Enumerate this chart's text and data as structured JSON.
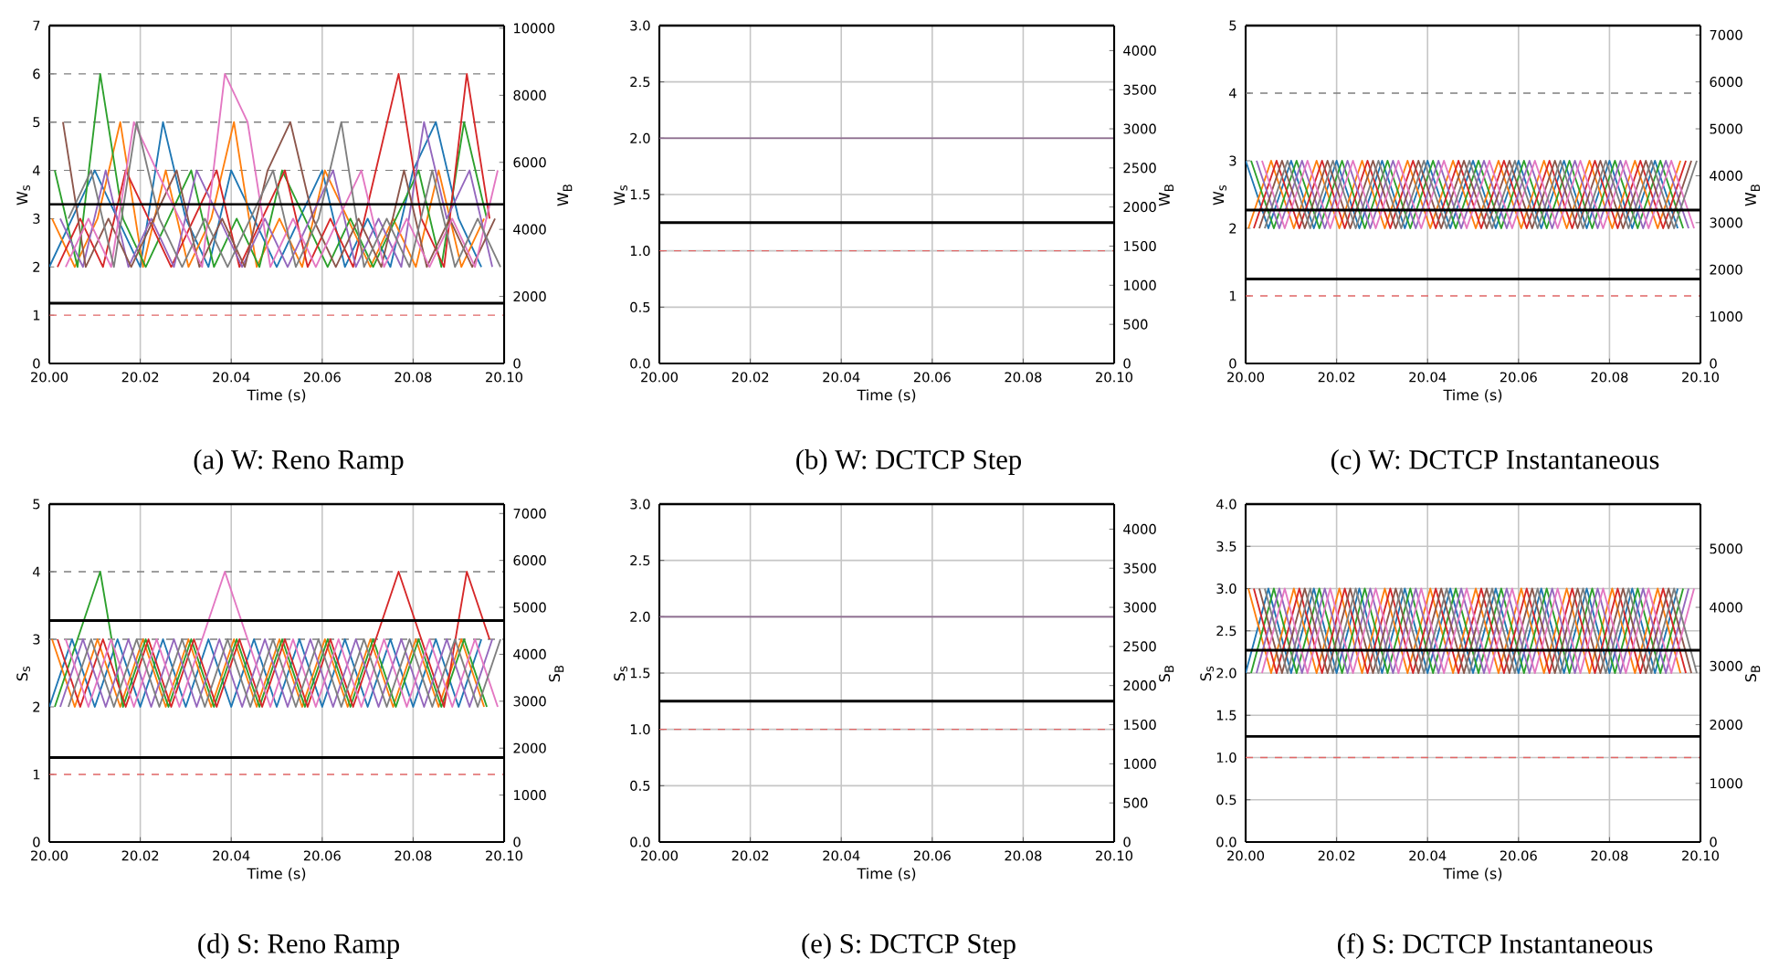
{
  "chart_data": [
    {
      "type": "line",
      "title": "(a) W: Reno Ramp",
      "xlabel": "Time (s)",
      "ylabel": "W$_{s}$",
      "y2label": "W$_{B}$",
      "grid": "x",
      "xlim": [
        20.0,
        20.1
      ],
      "xticks": [
        {
          "value": 20.0,
          "label": "20.00"
        },
        {
          "value": 20.02,
          "label": "20.02"
        },
        {
          "value": 20.04,
          "label": "20.04"
        },
        {
          "value": 20.06,
          "label": "20.06"
        },
        {
          "value": 20.08,
          "label": "20.08"
        },
        {
          "value": 20.1,
          "label": "20.10"
        }
      ],
      "ylim": [
        0,
        7
      ],
      "yticks": [
        0,
        1,
        2,
        3,
        4,
        5,
        6,
        7
      ],
      "y2lim": [
        0,
        10080
      ],
      "y2ticks": [
        0,
        2000,
        4000,
        6000,
        8000,
        10000
      ],
      "series": [
        {
          "color": "#1f77b4",
          "x": [
            20.0,
            20.005,
            20.01,
            20.015,
            20.02,
            20.025,
            20.03,
            20.035,
            20.04,
            20.045,
            20.05,
            20.055,
            20.06,
            20.065,
            20.07,
            20.075,
            20.08,
            20.085,
            20.09,
            20.095
          ],
          "values": [
            2,
            3,
            4,
            3,
            2,
            5,
            3,
            2,
            4,
            3,
            2,
            3,
            4,
            2,
            3,
            2,
            4,
            5,
            3,
            2
          ]
        },
        {
          "color": "#ff7f0e",
          "x": [
            20.0006,
            20.0056,
            20.0106,
            20.0156,
            20.0206,
            20.0256,
            20.0306,
            20.0356,
            20.0406,
            20.0456,
            20.0506,
            20.0556,
            20.0606,
            20.0656,
            20.0706,
            20.0756,
            20.0806,
            20.0856,
            20.0906,
            20.0956
          ],
          "values": [
            3,
            2,
            3,
            5,
            2,
            4,
            2,
            3,
            5,
            2,
            3,
            2,
            4,
            3,
            2,
            3,
            2,
            4,
            2,
            3
          ]
        },
        {
          "color": "#2ca02c",
          "x": [
            20.0012,
            20.0062,
            20.0112,
            20.0162,
            20.0212,
            20.0262,
            20.0312,
            20.0362,
            20.0412,
            20.0462,
            20.0512,
            20.0562,
            20.0612,
            20.0662,
            20.0712,
            20.0762,
            20.0812,
            20.0862,
            20.0912,
            20.0962
          ],
          "values": [
            4,
            2,
            6,
            3,
            2,
            3,
            4,
            2,
            3,
            2,
            4,
            3,
            2,
            3,
            2,
            3,
            4,
            2,
            5,
            3
          ]
        },
        {
          "color": "#d62728",
          "x": [
            20.0018,
            20.0068,
            20.0118,
            20.0168,
            20.0218,
            20.0268,
            20.0318,
            20.0368,
            20.0418,
            20.0468,
            20.0518,
            20.0568,
            20.0618,
            20.0668,
            20.0718,
            20.0768,
            20.0818,
            20.0868,
            20.0918,
            20.0968
          ],
          "values": [
            2,
            3,
            2,
            4,
            3,
            2,
            3,
            4,
            2,
            3,
            4,
            2,
            3,
            2,
            4,
            6,
            3,
            2,
            6,
            3
          ]
        },
        {
          "color": "#9467bd",
          "x": [
            20.0024,
            20.0074,
            20.0124,
            20.0174,
            20.0224,
            20.0274,
            20.0324,
            20.0374,
            20.0424,
            20.0474,
            20.0524,
            20.0574,
            20.0624,
            20.0674,
            20.0724,
            20.0774,
            20.0824,
            20.0874,
            20.0924,
            20.0974
          ],
          "values": [
            3,
            2,
            4,
            2,
            3,
            2,
            4,
            3,
            2,
            3,
            2,
            3,
            4,
            2,
            3,
            2,
            5,
            3,
            4,
            2
          ]
        },
        {
          "color": "#8c564b",
          "x": [
            20.003,
            20.008,
            20.013,
            20.018,
            20.023,
            20.028,
            20.033,
            20.038,
            20.043,
            20.048,
            20.053,
            20.058,
            20.063,
            20.068,
            20.073,
            20.078,
            20.083,
            20.088,
            20.093,
            20.098
          ],
          "values": [
            5,
            2,
            3,
            2,
            3,
            4,
            2,
            3,
            2,
            4,
            5,
            3,
            2,
            3,
            2,
            4,
            2,
            3,
            2,
            3
          ]
        },
        {
          "color": "#e377c2",
          "x": [
            20.0036,
            20.0086,
            20.0136,
            20.0186,
            20.0236,
            20.0286,
            20.0336,
            20.0386,
            20.0436,
            20.0486,
            20.0536,
            20.0586,
            20.0636,
            20.0686,
            20.0736,
            20.0786,
            20.0836,
            20.0886,
            20.0936,
            20.0986
          ],
          "values": [
            2,
            3,
            2,
            5,
            4,
            3,
            2,
            6,
            5,
            2,
            3,
            2,
            3,
            4,
            2,
            3,
            2,
            3,
            2,
            4
          ]
        },
        {
          "color": "#7f7f7f",
          "x": [
            20.0042,
            20.0092,
            20.0142,
            20.0192,
            20.0242,
            20.0292,
            20.0342,
            20.0392,
            20.0442,
            20.0492,
            20.0542,
            20.0592,
            20.0642,
            20.0692,
            20.0742,
            20.0792,
            20.0842,
            20.0892,
            20.0942,
            20.0992
          ],
          "values": [
            3,
            4,
            2,
            5,
            3,
            2,
            3,
            2,
            3,
            4,
            2,
            3,
            5,
            2,
            3,
            2,
            4,
            2,
            3,
            2
          ]
        }
      ],
      "ref_lines": [
        {
          "axis": "y",
          "value": 4,
          "color": "#7f7f7f",
          "line_style": "dashed"
        },
        {
          "axis": "y",
          "value": 5,
          "color": "#7f7f7f",
          "line_style": "dashed"
        },
        {
          "axis": "y",
          "value": 6,
          "color": "#7f7f7f",
          "line_style": "dashed"
        },
        {
          "axis": "y",
          "value": 1,
          "color": "#e06666",
          "line_style": "dashed"
        },
        {
          "axis": "y2",
          "value": 4750,
          "color": "#000000",
          "line_style": "solid"
        },
        {
          "axis": "y2",
          "value": 1800,
          "color": "#000000",
          "line_style": "solid"
        }
      ]
    },
    {
      "type": "line",
      "title": "(b) W: DCTCP Step",
      "xlabel": "Time (s)",
      "ylabel": "W$_{s}$",
      "y2label": "W$_{B}$",
      "grid": true,
      "xlim": [
        20.0,
        20.1
      ],
      "xticks": [
        {
          "value": 20.0,
          "label": "20.00"
        },
        {
          "value": 20.02,
          "label": "20.02"
        },
        {
          "value": 20.04,
          "label": "20.04"
        },
        {
          "value": 20.06,
          "label": "20.06"
        },
        {
          "value": 20.08,
          "label": "20.08"
        },
        {
          "value": 20.1,
          "label": "20.10"
        }
      ],
      "ylim": [
        0,
        3
      ],
      "yticks": [
        {
          "value": 0,
          "label": "0.0"
        },
        {
          "value": 0.5,
          "label": "0.5"
        },
        {
          "value": 1,
          "label": "1.0"
        },
        {
          "value": 1.5,
          "label": "1.5"
        },
        {
          "value": 2,
          "label": "2.0"
        },
        {
          "value": 2.5,
          "label": "2.5"
        },
        {
          "value": 3,
          "label": "3.0"
        }
      ],
      "y2lim": [
        0,
        4320
      ],
      "y2ticks": [
        0,
        500,
        1000,
        1500,
        2000,
        2500,
        3000,
        3500,
        4000
      ],
      "series": [
        {
          "color": "#8c6a8e",
          "x": [
            20.0,
            20.1
          ],
          "values": [
            2,
            2
          ]
        }
      ],
      "ref_lines": [
        {
          "axis": "y",
          "value": 1,
          "color": "#e06666",
          "line_style": "dashed"
        },
        {
          "axis": "y2",
          "value": 1800,
          "color": "#000000",
          "line_style": "solid"
        }
      ]
    },
    {
      "type": "line",
      "title": "(c) W: DCTCP Instantaneous",
      "xlabel": "Time (s)",
      "ylabel": "W$_{s}$",
      "y2label": "W$_{B}$",
      "grid": "x",
      "xlim": [
        20.0,
        20.1
      ],
      "xticks": [
        {
          "value": 20.0,
          "label": "20.00"
        },
        {
          "value": 20.02,
          "label": "20.02"
        },
        {
          "value": 20.04,
          "label": "20.04"
        },
        {
          "value": 20.06,
          "label": "20.06"
        },
        {
          "value": 20.08,
          "label": "20.08"
        },
        {
          "value": 20.1,
          "label": "20.10"
        }
      ],
      "ylim": [
        0,
        5
      ],
      "yticks": [
        0,
        1,
        2,
        3,
        4,
        5
      ],
      "y2lim": [
        0,
        7200
      ],
      "y2ticks": [
        0,
        1000,
        2000,
        3000,
        4000,
        5000,
        6000,
        7000
      ],
      "series": [
        {
          "color": "#1f77b4",
          "x": [
            20.0,
            20.005,
            20.01,
            20.015,
            20.02,
            20.025,
            20.03,
            20.035,
            20.04,
            20.045,
            20.05,
            20.055,
            20.06,
            20.065,
            20.07,
            20.075,
            20.08,
            20.085,
            20.09,
            20.095
          ],
          "values": [
            3,
            2,
            3,
            2,
            3,
            2,
            3,
            2,
            3,
            2,
            3,
            2,
            3,
            2,
            3,
            2,
            3,
            2,
            3,
            2
          ]
        },
        {
          "color": "#ff7f0e",
          "x": [
            20.0006,
            20.0056,
            20.0106,
            20.0156,
            20.0206,
            20.0256,
            20.0306,
            20.0356,
            20.0406,
            20.0456,
            20.0506,
            20.0556,
            20.0606,
            20.0656,
            20.0706,
            20.0756,
            20.0806,
            20.0856,
            20.0906,
            20.0956
          ],
          "values": [
            2,
            3,
            2,
            3,
            2,
            3,
            2,
            3,
            2,
            3,
            2,
            3,
            2,
            3,
            2,
            3,
            2,
            3,
            2,
            3
          ]
        },
        {
          "color": "#2ca02c",
          "x": [
            20.0012,
            20.0062,
            20.0112,
            20.0162,
            20.0212,
            20.0262,
            20.0312,
            20.0362,
            20.0412,
            20.0462,
            20.0512,
            20.0562,
            20.0612,
            20.0662,
            20.0712,
            20.0762,
            20.0812,
            20.0862,
            20.0912,
            20.0962
          ],
          "values": [
            3,
            2,
            3,
            2,
            3,
            2,
            3,
            2,
            3,
            2,
            3,
            2,
            3,
            2,
            3,
            2,
            3,
            2,
            3,
            2
          ]
        },
        {
          "color": "#d62728",
          "x": [
            20.0018,
            20.0068,
            20.0118,
            20.0168,
            20.0218,
            20.0268,
            20.0318,
            20.0368,
            20.0418,
            20.0468,
            20.0518,
            20.0568,
            20.0618,
            20.0668,
            20.0718,
            20.0768,
            20.0818,
            20.0868,
            20.0918,
            20.0968
          ],
          "values": [
            2,
            3,
            2,
            3,
            2,
            3,
            2,
            3,
            2,
            3,
            2,
            3,
            2,
            3,
            2,
            3,
            2,
            3,
            2,
            3
          ]
        },
        {
          "color": "#9467bd",
          "x": [
            20.0024,
            20.0074,
            20.0124,
            20.0174,
            20.0224,
            20.0274,
            20.0324,
            20.0374,
            20.0424,
            20.0474,
            20.0524,
            20.0574,
            20.0624,
            20.0674,
            20.0724,
            20.0774,
            20.0824,
            20.0874,
            20.0924,
            20.0974
          ],
          "values": [
            3,
            2,
            3,
            2,
            3,
            2,
            3,
            2,
            3,
            2,
            3,
            2,
            3,
            2,
            3,
            2,
            3,
            2,
            3,
            2
          ]
        },
        {
          "color": "#8c564b",
          "x": [
            20.003,
            20.008,
            20.013,
            20.018,
            20.023,
            20.028,
            20.033,
            20.038,
            20.043,
            20.048,
            20.053,
            20.058,
            20.063,
            20.068,
            20.073,
            20.078,
            20.083,
            20.088,
            20.093,
            20.098
          ],
          "values": [
            2,
            3,
            2,
            3,
            2,
            3,
            2,
            3,
            2,
            3,
            2,
            3,
            2,
            3,
            2,
            3,
            2,
            3,
            2,
            3
          ]
        },
        {
          "color": "#e377c2",
          "x": [
            20.0036,
            20.0086,
            20.0136,
            20.0186,
            20.0236,
            20.0286,
            20.0336,
            20.0386,
            20.0436,
            20.0486,
            20.0536,
            20.0586,
            20.0636,
            20.0686,
            20.0736,
            20.0786,
            20.0836,
            20.0886,
            20.0936,
            20.0986
          ],
          "values": [
            3,
            2,
            3,
            2,
            3,
            2,
            3,
            2,
            3,
            2,
            3,
            2,
            3,
            2,
            3,
            2,
            3,
            2,
            3,
            2
          ]
        },
        {
          "color": "#7f7f7f",
          "x": [
            20.0042,
            20.0092,
            20.0142,
            20.0192,
            20.0242,
            20.0292,
            20.0342,
            20.0392,
            20.0442,
            20.0492,
            20.0542,
            20.0592,
            20.0642,
            20.0692,
            20.0742,
            20.0792,
            20.0842,
            20.0892,
            20.0942,
            20.0992
          ],
          "values": [
            2,
            3,
            2,
            3,
            2,
            3,
            2,
            3,
            2,
            3,
            2,
            3,
            2,
            3,
            2,
            3,
            2,
            3,
            2,
            3
          ]
        }
      ],
      "ref_lines": [
        {
          "axis": "y",
          "value": 4,
          "color": "#7f7f7f",
          "line_style": "dashed"
        },
        {
          "axis": "y",
          "value": 1,
          "color": "#e06666",
          "line_style": "dashed"
        },
        {
          "axis": "y2",
          "value": 3270,
          "color": "#000000",
          "line_style": "solid"
        },
        {
          "axis": "y2",
          "value": 1800,
          "color": "#000000",
          "line_style": "solid"
        }
      ]
    },
    {
      "type": "line",
      "title": "(d) S: Reno Ramp",
      "xlabel": "Time (s)",
      "ylabel": "S$_{s}$",
      "y2label": "S$_{B}$",
      "grid": "x",
      "xlim": [
        20.0,
        20.1
      ],
      "xticks": [
        {
          "value": 20.0,
          "label": "20.00"
        },
        {
          "value": 20.02,
          "label": "20.02"
        },
        {
          "value": 20.04,
          "label": "20.04"
        },
        {
          "value": 20.06,
          "label": "20.06"
        },
        {
          "value": 20.08,
          "label": "20.08"
        },
        {
          "value": 20.1,
          "label": "20.10"
        }
      ],
      "ylim": [
        0,
        5
      ],
      "yticks": [
        0,
        1,
        2,
        3,
        4,
        5
      ],
      "y2lim": [
        0,
        7200
      ],
      "y2ticks": [
        0,
        1000,
        2000,
        3000,
        4000,
        5000,
        6000,
        7000
      ],
      "series": [
        {
          "color": "#1f77b4",
          "x": [
            20.0,
            20.005,
            20.01,
            20.015,
            20.02,
            20.025,
            20.03,
            20.035,
            20.04,
            20.045,
            20.05,
            20.055,
            20.06,
            20.065,
            20.07,
            20.075,
            20.08,
            20.085,
            20.09,
            20.095
          ],
          "values": [
            2,
            3,
            2,
            3,
            2,
            3,
            2,
            3,
            2,
            3,
            2,
            3,
            2,
            3,
            2,
            3,
            2,
            3,
            2,
            3
          ]
        },
        {
          "color": "#ff7f0e",
          "x": [
            20.0006,
            20.0056,
            20.0106,
            20.0156,
            20.0206,
            20.0256,
            20.0306,
            20.0356,
            20.0406,
            20.0456,
            20.0506,
            20.0556,
            20.0606,
            20.0656,
            20.0706,
            20.0756,
            20.0806,
            20.0856,
            20.0906,
            20.0956
          ],
          "values": [
            3,
            2,
            3,
            2,
            3,
            2,
            3,
            2,
            3,
            2,
            3,
            2,
            3,
            2,
            3,
            2,
            3,
            2,
            3,
            2
          ]
        },
        {
          "color": "#2ca02c",
          "x": [
            20.0012,
            20.0062,
            20.0112,
            20.0162,
            20.0212,
            20.0262,
            20.0312,
            20.0362,
            20.0412,
            20.0462,
            20.0512,
            20.0562,
            20.0612,
            20.0662,
            20.0712,
            20.0762,
            20.0812,
            20.0862,
            20.0912,
            20.0962
          ],
          "values": [
            2,
            3,
            4,
            2,
            3,
            2,
            3,
            2,
            3,
            2,
            3,
            2,
            3,
            2,
            3,
            2,
            3,
            2,
            3,
            2
          ]
        },
        {
          "color": "#d62728",
          "x": [
            20.0018,
            20.0068,
            20.0118,
            20.0168,
            20.0218,
            20.0268,
            20.0318,
            20.0368,
            20.0418,
            20.0468,
            20.0518,
            20.0568,
            20.0618,
            20.0668,
            20.0718,
            20.0768,
            20.0818,
            20.0868,
            20.0918,
            20.0968
          ],
          "values": [
            3,
            2,
            3,
            2,
            3,
            2,
            3,
            2,
            3,
            2,
            3,
            2,
            3,
            2,
            3,
            4,
            3,
            2,
            4,
            3
          ]
        },
        {
          "color": "#9467bd",
          "x": [
            20.0024,
            20.0074,
            20.0124,
            20.0174,
            20.0224,
            20.0274,
            20.0324,
            20.0374,
            20.0424,
            20.0474,
            20.0524,
            20.0574,
            20.0624,
            20.0674,
            20.0724,
            20.0774,
            20.0824,
            20.0874,
            20.0924,
            20.0974
          ],
          "values": [
            2,
            3,
            2,
            3,
            2,
            3,
            2,
            3,
            2,
            3,
            2,
            3,
            2,
            3,
            2,
            3,
            2,
            3,
            2,
            3
          ]
        },
        {
          "color": "#e377c2",
          "x": [
            20.0036,
            20.0086,
            20.0136,
            20.0186,
            20.0236,
            20.0286,
            20.0336,
            20.0386,
            20.0436,
            20.0486,
            20.0536,
            20.0586,
            20.0636,
            20.0686,
            20.0736,
            20.0786,
            20.0836,
            20.0886,
            20.0936,
            20.0986
          ],
          "values": [
            3,
            2,
            3,
            2,
            3,
            2,
            3,
            4,
            3,
            2,
            3,
            2,
            3,
            2,
            3,
            2,
            3,
            2,
            3,
            2
          ]
        },
        {
          "color": "#7f7f7f",
          "x": [
            20.0042,
            20.0092,
            20.0142,
            20.0192,
            20.0242,
            20.0292,
            20.0342,
            20.0392,
            20.0442,
            20.0492,
            20.0542,
            20.0592,
            20.0642,
            20.0692,
            20.0742,
            20.0792,
            20.0842,
            20.0892,
            20.0942,
            20.0992
          ],
          "values": [
            2,
            3,
            2,
            3,
            2,
            3,
            2,
            3,
            2,
            3,
            2,
            3,
            2,
            3,
            2,
            3,
            2,
            3,
            2,
            3
          ]
        }
      ],
      "ref_lines": [
        {
          "axis": "y",
          "value": 4,
          "color": "#7f7f7f",
          "line_style": "dashed"
        },
        {
          "axis": "y",
          "value": 3,
          "color": "#7f7f7f",
          "line_style": "dashed"
        },
        {
          "axis": "y",
          "value": 1,
          "color": "#e06666",
          "line_style": "dashed"
        },
        {
          "axis": "y2",
          "value": 4720,
          "color": "#000000",
          "line_style": "solid"
        },
        {
          "axis": "y2",
          "value": 1800,
          "color": "#000000",
          "line_style": "solid"
        }
      ]
    },
    {
      "type": "line",
      "title": "(e) S: DCTCP Step",
      "xlabel": "Time (s)",
      "ylabel": "S$_{s}$",
      "y2label": "S$_{B}$",
      "grid": true,
      "xlim": [
        20.0,
        20.1
      ],
      "xticks": [
        {
          "value": 20.0,
          "label": "20.00"
        },
        {
          "value": 20.02,
          "label": "20.02"
        },
        {
          "value": 20.04,
          "label": "20.04"
        },
        {
          "value": 20.06,
          "label": "20.06"
        },
        {
          "value": 20.08,
          "label": "20.08"
        },
        {
          "value": 20.1,
          "label": "20.10"
        }
      ],
      "ylim": [
        0,
        3
      ],
      "yticks": [
        {
          "value": 0,
          "label": "0.0"
        },
        {
          "value": 0.5,
          "label": "0.5"
        },
        {
          "value": 1,
          "label": "1.0"
        },
        {
          "value": 1.5,
          "label": "1.5"
        },
        {
          "value": 2,
          "label": "2.0"
        },
        {
          "value": 2.5,
          "label": "2.5"
        },
        {
          "value": 3,
          "label": "3.0"
        }
      ],
      "y2lim": [
        0,
        4320
      ],
      "y2ticks": [
        0,
        500,
        1000,
        1500,
        2000,
        2500,
        3000,
        3500,
        4000
      ],
      "series": [
        {
          "color": "#8c6a8e",
          "x": [
            20.0,
            20.1
          ],
          "values": [
            2,
            2
          ]
        }
      ],
      "ref_lines": [
        {
          "axis": "y",
          "value": 1,
          "color": "#e06666",
          "line_style": "dashed"
        },
        {
          "axis": "y2",
          "value": 1800,
          "color": "#000000",
          "line_style": "solid"
        }
      ]
    },
    {
      "type": "line",
      "title": "(f) S: DCTCP Instantaneous",
      "xlabel": "Time (s)",
      "ylabel": "S$_{s}$",
      "y2label": "S$_{B}$",
      "grid": true,
      "xlim": [
        20.0,
        20.1
      ],
      "xticks": [
        {
          "value": 20.0,
          "label": "20.00"
        },
        {
          "value": 20.02,
          "label": "20.02"
        },
        {
          "value": 20.04,
          "label": "20.04"
        },
        {
          "value": 20.06,
          "label": "20.06"
        },
        {
          "value": 20.08,
          "label": "20.08"
        },
        {
          "value": 20.1,
          "label": "20.10"
        }
      ],
      "ylim": [
        0,
        4
      ],
      "yticks": [
        {
          "value": 0,
          "label": "0.0"
        },
        {
          "value": 0.5,
          "label": "0.5"
        },
        {
          "value": 1,
          "label": "1.0"
        },
        {
          "value": 1.5,
          "label": "1.5"
        },
        {
          "value": 2,
          "label": "2.0"
        },
        {
          "value": 2.5,
          "label": "2.5"
        },
        {
          "value": 3,
          "label": "3.0"
        },
        {
          "value": 3.5,
          "label": "3.5"
        },
        {
          "value": 4,
          "label": "4.0"
        }
      ],
      "y2lim": [
        0,
        5760
      ],
      "y2ticks": [
        0,
        1000,
        2000,
        3000,
        4000,
        5000
      ],
      "series": [
        {
          "color": "#1f77b4",
          "x": [
            20.0,
            20.005,
            20.01,
            20.015,
            20.02,
            20.025,
            20.03,
            20.035,
            20.04,
            20.045,
            20.05,
            20.055,
            20.06,
            20.065,
            20.07,
            20.075,
            20.08,
            20.085,
            20.09,
            20.095
          ],
          "values": [
            2,
            3,
            2,
            3,
            2,
            3,
            2,
            3,
            2,
            3,
            2,
            3,
            2,
            3,
            2,
            3,
            2,
            3,
            2,
            3
          ]
        },
        {
          "color": "#ff7f0e",
          "x": [
            20.0006,
            20.0056,
            20.0106,
            20.0156,
            20.0206,
            20.0256,
            20.0306,
            20.0356,
            20.0406,
            20.0456,
            20.0506,
            20.0556,
            20.0606,
            20.0656,
            20.0706,
            20.0756,
            20.0806,
            20.0856,
            20.0906,
            20.0956
          ],
          "values": [
            3,
            2,
            3,
            2,
            3,
            2,
            3,
            2,
            3,
            2,
            3,
            2,
            3,
            2,
            3,
            2,
            3,
            2,
            3,
            2
          ]
        },
        {
          "color": "#2ca02c",
          "x": [
            20.0012,
            20.0062,
            20.0112,
            20.0162,
            20.0212,
            20.0262,
            20.0312,
            20.0362,
            20.0412,
            20.0462,
            20.0512,
            20.0562,
            20.0612,
            20.0662,
            20.0712,
            20.0762,
            20.0812,
            20.0862,
            20.0912,
            20.0962
          ],
          "values": [
            2,
            3,
            2,
            3,
            2,
            3,
            2,
            3,
            2,
            3,
            2,
            3,
            2,
            3,
            2,
            3,
            2,
            3,
            2,
            3
          ]
        },
        {
          "color": "#d62728",
          "x": [
            20.0018,
            20.0068,
            20.0118,
            20.0168,
            20.0218,
            20.0268,
            20.0318,
            20.0368,
            20.0418,
            20.0468,
            20.0518,
            20.0568,
            20.0618,
            20.0668,
            20.0718,
            20.0768,
            20.0818,
            20.0868,
            20.0918,
            20.0968
          ],
          "values": [
            3,
            2,
            3,
            2,
            3,
            2,
            3,
            2,
            3,
            2,
            3,
            2,
            3,
            2,
            3,
            2,
            3,
            2,
            3,
            2
          ]
        },
        {
          "color": "#9467bd",
          "x": [
            20.0024,
            20.0074,
            20.0124,
            20.0174,
            20.0224,
            20.0274,
            20.0324,
            20.0374,
            20.0424,
            20.0474,
            20.0524,
            20.0574,
            20.0624,
            20.0674,
            20.0724,
            20.0774,
            20.0824,
            20.0874,
            20.0924,
            20.0974
          ],
          "values": [
            2,
            3,
            2,
            3,
            2,
            3,
            2,
            3,
            2,
            3,
            2,
            3,
            2,
            3,
            2,
            3,
            2,
            3,
            2,
            3
          ]
        },
        {
          "color": "#8c564b",
          "x": [
            20.003,
            20.008,
            20.013,
            20.018,
            20.023,
            20.028,
            20.033,
            20.038,
            20.043,
            20.048,
            20.053,
            20.058,
            20.063,
            20.068,
            20.073,
            20.078,
            20.083,
            20.088,
            20.093,
            20.098
          ],
          "values": [
            3,
            2,
            3,
            2,
            3,
            2,
            3,
            2,
            3,
            2,
            3,
            2,
            3,
            2,
            3,
            2,
            3,
            2,
            3,
            2
          ]
        },
        {
          "color": "#e377c2",
          "x": [
            20.0036,
            20.0086,
            20.0136,
            20.0186,
            20.0236,
            20.0286,
            20.0336,
            20.0386,
            20.0436,
            20.0486,
            20.0536,
            20.0586,
            20.0636,
            20.0686,
            20.0736,
            20.0786,
            20.0836,
            20.0886,
            20.0936,
            20.0986
          ],
          "values": [
            2,
            3,
            2,
            3,
            2,
            3,
            2,
            3,
            2,
            3,
            2,
            3,
            2,
            3,
            2,
            3,
            2,
            3,
            2,
            3
          ]
        },
        {
          "color": "#7f7f7f",
          "x": [
            20.0042,
            20.0092,
            20.0142,
            20.0192,
            20.0242,
            20.0292,
            20.0342,
            20.0392,
            20.0442,
            20.0492,
            20.0542,
            20.0592,
            20.0642,
            20.0692,
            20.0742,
            20.0792,
            20.0842,
            20.0892,
            20.0942,
            20.0992
          ],
          "values": [
            3,
            2,
            3,
            2,
            3,
            2,
            3,
            2,
            3,
            2,
            3,
            2,
            3,
            2,
            3,
            2,
            3,
            2,
            3,
            2
          ]
        }
      ],
      "ref_lines": [
        {
          "axis": "y",
          "value": 1,
          "color": "#e06666",
          "line_style": "dashed"
        },
        {
          "axis": "y2",
          "value": 3270,
          "color": "#000000",
          "line_style": "solid"
        },
        {
          "axis": "y2",
          "value": 1800,
          "color": "#000000",
          "line_style": "solid"
        }
      ]
    }
  ]
}
